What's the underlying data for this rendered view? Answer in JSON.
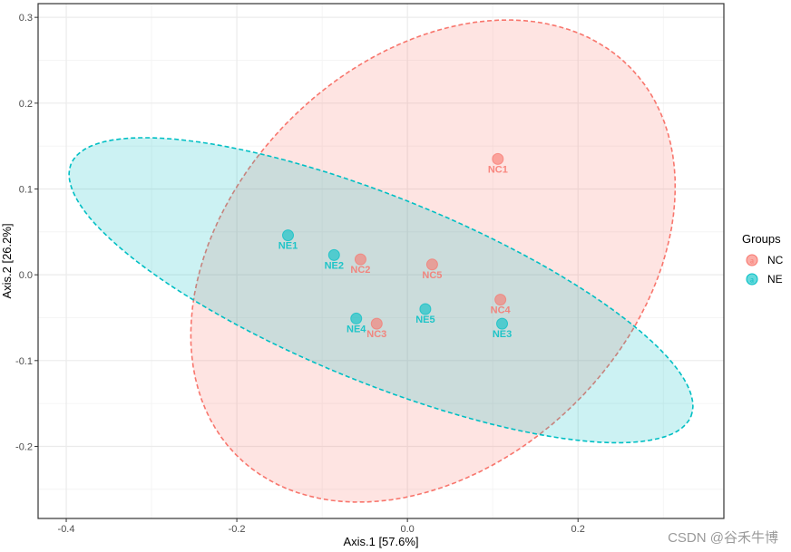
{
  "chart_data": {
    "type": "scatter",
    "xlabel": "Axis.1   [57.6%]",
    "ylabel": "Axis.2   [26.2%]",
    "xlim": [
      -0.433,
      0.371
    ],
    "ylim": [
      -0.284,
      0.316
    ],
    "xticks": [
      -0.4,
      -0.2,
      0.0,
      0.2
    ],
    "xtick_labels": [
      "-0.4",
      "-0.2",
      "0.0",
      "0.2"
    ],
    "yticks": [
      -0.2,
      -0.1,
      0.0,
      0.1,
      0.2,
      0.3
    ],
    "ytick_labels": [
      "-0.2",
      "-0.1",
      "0.0",
      "0.1",
      "0.2",
      "0.3"
    ],
    "grid": true,
    "legend": {
      "title": "Groups",
      "placement": "right",
      "key_glyph": "a"
    },
    "series": [
      {
        "name": "NC",
        "color": "#F8766D",
        "points": [
          {
            "label": "NC1",
            "x": 0.106,
            "y": 0.135
          },
          {
            "label": "NC2",
            "x": -0.055,
            "y": 0.018
          },
          {
            "label": "NC3",
            "x": -0.036,
            "y": -0.057
          },
          {
            "label": "NC4",
            "x": 0.109,
            "y": -0.029
          },
          {
            "label": "NC5",
            "x": 0.029,
            "y": 0.012
          }
        ],
        "ellipse": {
          "center": [
            0.03,
            0.016
          ],
          "semi_major": 0.323,
          "semi_minor": 0.235,
          "angle_deg": 44
        }
      },
      {
        "name": "NE",
        "color": "#00BFC4",
        "points": [
          {
            "label": "NE1",
            "x": -0.14,
            "y": 0.046
          },
          {
            "label": "NE2",
            "x": -0.086,
            "y": 0.023
          },
          {
            "label": "NE3",
            "x": 0.111,
            "y": -0.057
          },
          {
            "label": "NE4",
            "x": -0.06,
            "y": -0.051
          },
          {
            "label": "NE5",
            "x": 0.021,
            "y": -0.04
          }
        ],
        "ellipse": {
          "center": [
            -0.031,
            -0.018
          ],
          "semi_major": 0.392,
          "semi_minor": 0.108,
          "angle_deg": -22
        }
      }
    ]
  },
  "watermark": "CSDN @谷禾牛博"
}
